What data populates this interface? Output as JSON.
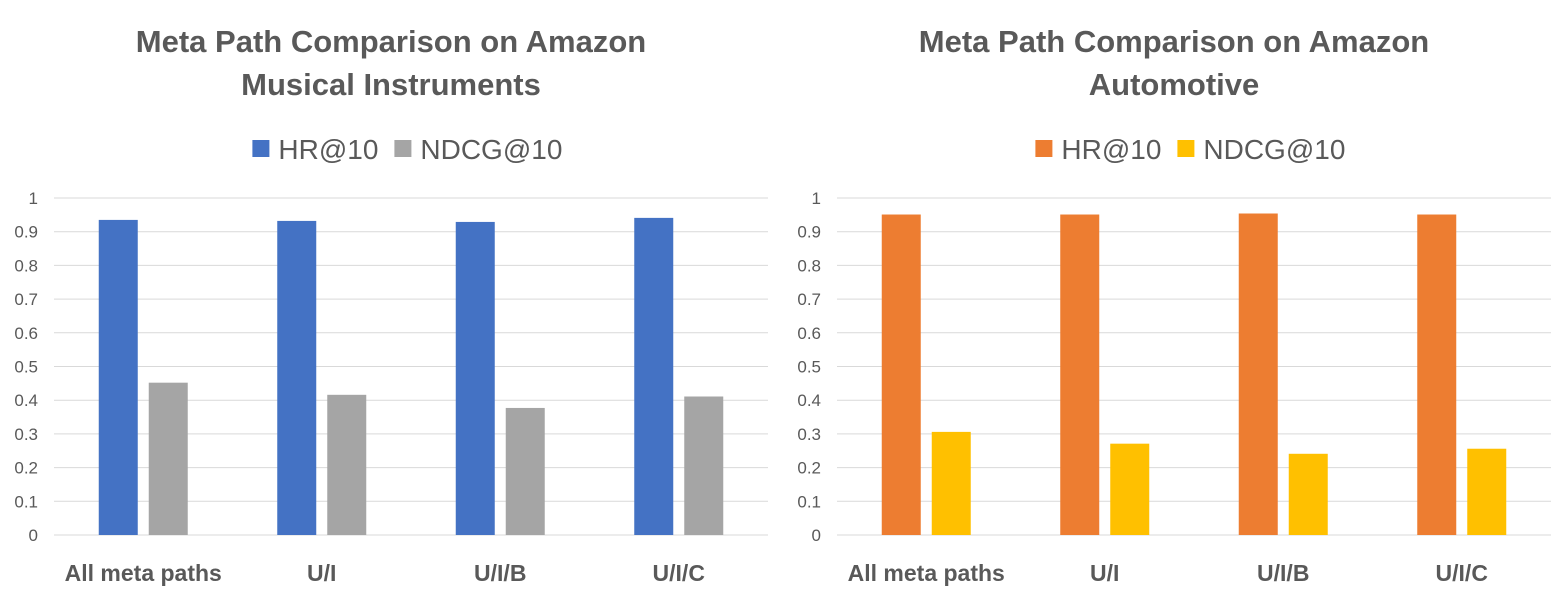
{
  "chart_data": [
    {
      "type": "bar",
      "title_lines": [
        "Meta Path Comparison on Amazon",
        "Musical Instruments"
      ],
      "categories": [
        "All meta paths",
        "U/I",
        "U/I/B",
        "U/I/C"
      ],
      "series": [
        {
          "name": "HR@10",
          "color": "#4472c4",
          "values": [
            0.935,
            0.932,
            0.929,
            0.941
          ]
        },
        {
          "name": "NDCG@10",
          "color": "#a5a5a5",
          "values": [
            0.452,
            0.416,
            0.377,
            0.411
          ]
        }
      ],
      "ylim": [
        0,
        1
      ],
      "yticks": [
        "0",
        "0.1",
        "0.2",
        "0.3",
        "0.4",
        "0.5",
        "0.6",
        "0.7",
        "0.8",
        "0.9",
        "1"
      ],
      "grid": true,
      "legend": "top"
    },
    {
      "type": "bar",
      "title_lines": [
        "Meta Path Comparison on Amazon",
        "Automotive"
      ],
      "categories": [
        "All meta paths",
        "U/I",
        "U/I/B",
        "U/I/C"
      ],
      "series": [
        {
          "name": "HR@10",
          "color": "#ed7d31",
          "values": [
            0.951,
            0.951,
            0.954,
            0.951
          ]
        },
        {
          "name": "NDCG@10",
          "color": "#ffc000",
          "values": [
            0.306,
            0.271,
            0.241,
            0.256
          ]
        }
      ],
      "ylim": [
        0,
        1
      ],
      "yticks": [
        "0",
        "0.1",
        "0.2",
        "0.3",
        "0.4",
        "0.5",
        "0.6",
        "0.7",
        "0.8",
        "0.9",
        "1"
      ],
      "grid": true,
      "legend": "top"
    }
  ]
}
